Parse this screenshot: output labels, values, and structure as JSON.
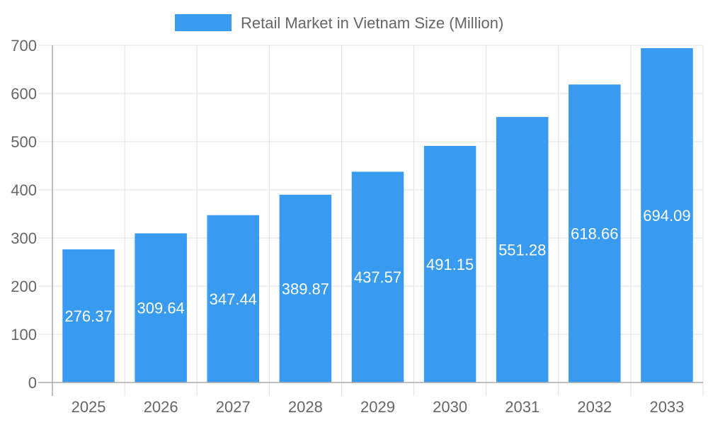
{
  "chart_data": {
    "type": "bar",
    "title": "",
    "xlabel": "",
    "ylabel": "",
    "categories": [
      "2025",
      "2026",
      "2027",
      "2028",
      "2029",
      "2030",
      "2031",
      "2032",
      "2033"
    ],
    "series": [
      {
        "name": "Retail Market in Vietnam Size (Million)",
        "values": [
          276.37,
          309.64,
          347.44,
          389.87,
          437.57,
          491.15,
          551.28,
          618.66,
          694.09
        ],
        "color": "#389BEF"
      }
    ],
    "data_labels": [
      "276.37",
      "309.64",
      "347.44",
      "389.87",
      "437.57",
      "491.15",
      "551.28",
      "618.66",
      "694.09"
    ],
    "ylim": [
      0,
      700
    ],
    "yticks": [
      "0",
      "100",
      "200",
      "300",
      "400",
      "500",
      "600",
      "700"
    ],
    "grid": true,
    "legend_position": "top"
  }
}
